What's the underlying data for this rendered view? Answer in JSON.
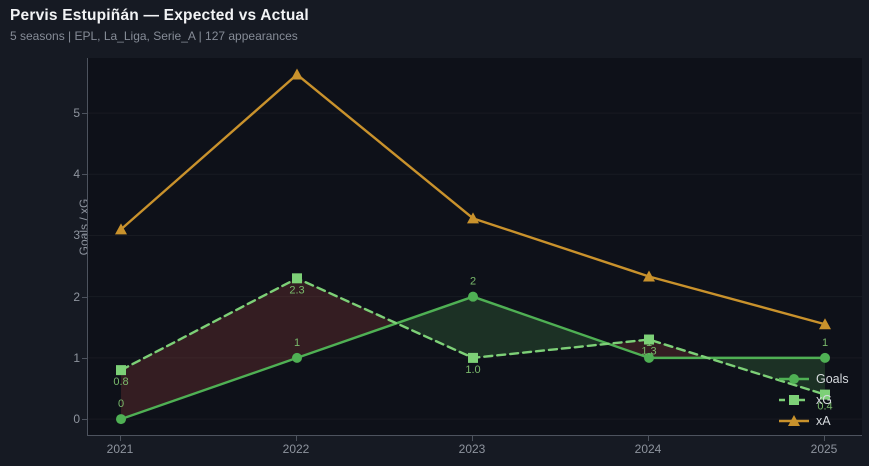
{
  "header": {
    "title": "Pervis Estupiñán — Expected vs Actual",
    "subtitle": "5 seasons | EPL, La_Liga, Serie_A | 127 appearances"
  },
  "chart_data": {
    "type": "line",
    "title": "Pervis Estupiñán — Expected vs Actual",
    "xlabel": "",
    "ylabel": "Goals / xG",
    "categories": [
      "2021",
      "2022",
      "2023",
      "2024",
      "2025"
    ],
    "yticks": [
      "0",
      "1",
      "2",
      "3",
      "4",
      "5"
    ],
    "ylim": [
      -0.26,
      5.9
    ],
    "grid": true,
    "legend_position": "lower right",
    "series": [
      {
        "name": "Goals",
        "values": [
          0,
          1,
          2,
          1,
          1
        ],
        "labels": [
          "0",
          "1",
          "2",
          "1",
          "1"
        ],
        "color": "#4fb054",
        "line": "solid",
        "marker": "circle",
        "label_side": "above"
      },
      {
        "name": "xG",
        "values": [
          0.8,
          2.3,
          1.0,
          1.3,
          0.4
        ],
        "labels": [
          "0.8",
          "2.3",
          "1.0",
          "1.3",
          "0.4"
        ],
        "color": "#7dd077",
        "line": "dashed",
        "marker": "square",
        "label_side": "below"
      },
      {
        "name": "xA",
        "values": [
          3.1,
          5.63,
          3.28,
          2.33,
          1.55
        ],
        "labels": [],
        "color": "#c9922c",
        "line": "solid",
        "marker": "triangle",
        "label_side": "none"
      }
    ],
    "fill_between": {
      "upper": "Goals",
      "lower": "xG",
      "positive_color": "rgba(96,200,96,0.18)",
      "negative_color": "rgba(205,78,70,0.20)"
    },
    "label_color": "#79b96b",
    "plot_bg": "#0e1119",
    "page_bg": "#161a23",
    "grid_color": "rgba(255,255,255,0.045)",
    "spine_color": "#4d535e",
    "tick_color": "#8e949e"
  }
}
